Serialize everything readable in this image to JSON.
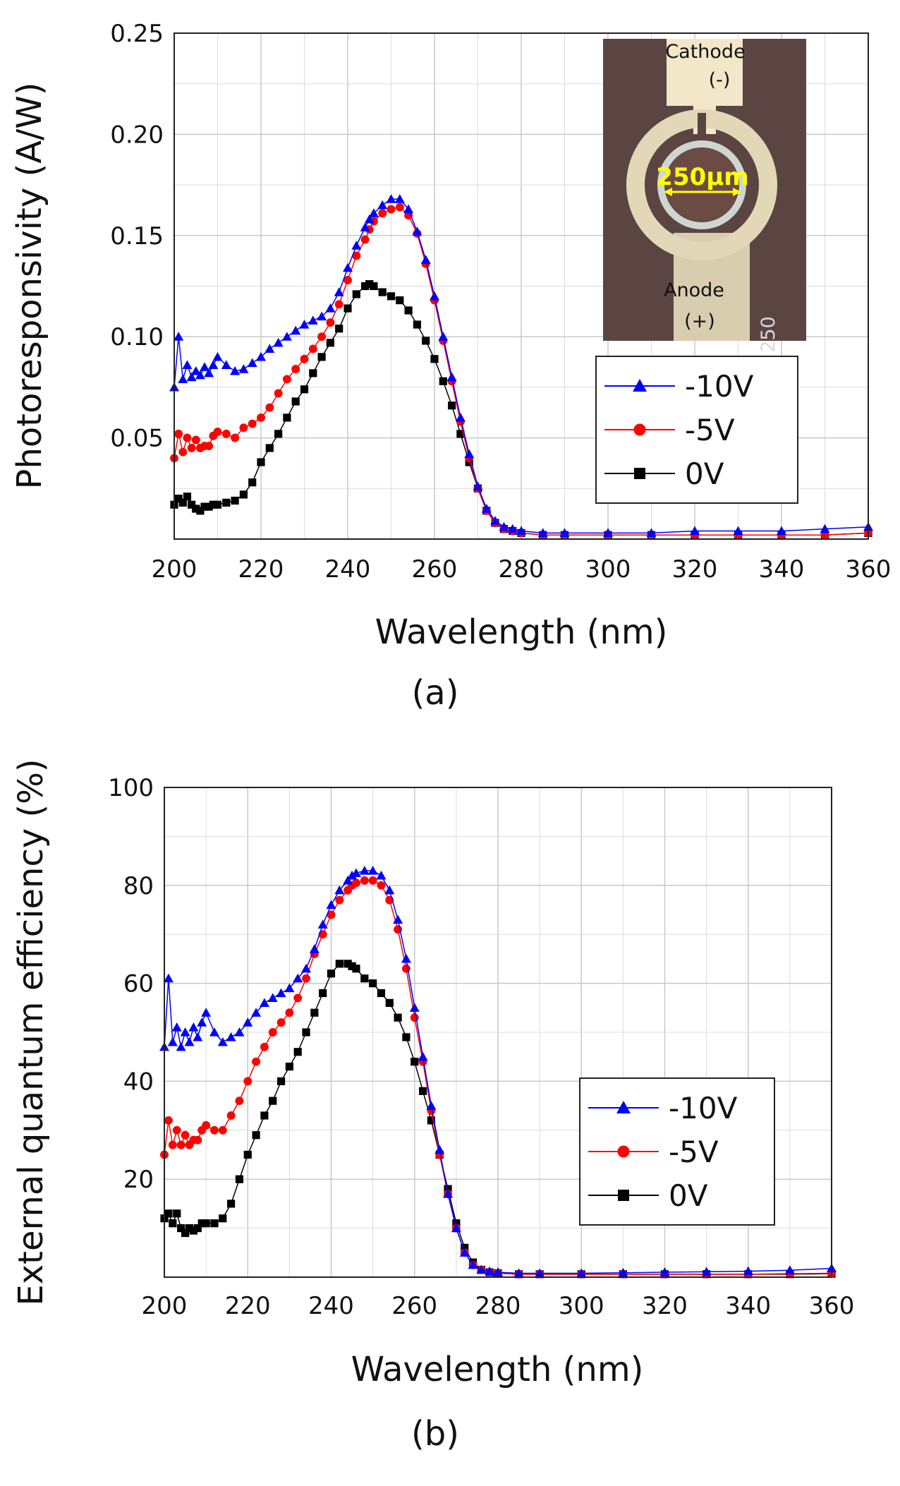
{
  "chart_data": [
    {
      "type": "scatter",
      "panel_label": "(a)",
      "xlabel": "Wavelength (nm)",
      "ylabel": "Photoresponsivity (A/W)",
      "xlim": [
        200,
        360
      ],
      "ylim": [
        0,
        0.25
      ],
      "x_ticks": [
        "200",
        "220",
        "240",
        "260",
        "280",
        "300",
        "320",
        "340",
        "360"
      ],
      "y_ticks": [
        "0.05",
        "0.10",
        "0.15",
        "0.20",
        "0.25"
      ],
      "grid": true,
      "legend_position": "right-middle",
      "inset": {
        "label_top": "Cathode",
        "label_top_sign": "(-)",
        "label_bottom": "Anode",
        "label_bottom_sign": "(+)",
        "scale_label": "250μm",
        "device_number": "250"
      },
      "x": [
        200,
        201,
        202,
        203,
        204,
        205,
        206,
        207,
        208,
        209,
        210,
        212,
        214,
        216,
        218,
        220,
        222,
        224,
        226,
        228,
        230,
        232,
        234,
        236,
        238,
        240,
        242,
        244,
        245,
        246,
        248,
        250,
        252,
        254,
        256,
        258,
        260,
        262,
        264,
        266,
        268,
        270,
        272,
        274,
        276,
        278,
        280,
        285,
        290,
        300,
        310,
        320,
        330,
        340,
        350,
        360
      ],
      "series": [
        {
          "name": "-10V",
          "color": "#0000ff",
          "marker": "triangle",
          "values": [
            0.075,
            0.1,
            0.079,
            0.086,
            0.08,
            0.083,
            0.081,
            0.085,
            0.082,
            0.086,
            0.09,
            0.086,
            0.083,
            0.084,
            0.087,
            0.09,
            0.094,
            0.097,
            0.1,
            0.103,
            0.106,
            0.108,
            0.11,
            0.114,
            0.122,
            0.134,
            0.145,
            0.154,
            0.158,
            0.161,
            0.165,
            0.168,
            0.168,
            0.163,
            0.152,
            0.138,
            0.12,
            0.1,
            0.08,
            0.06,
            0.042,
            0.026,
            0.015,
            0.009,
            0.006,
            0.005,
            0.004,
            0.003,
            0.003,
            0.003,
            0.003,
            0.004,
            0.004,
            0.004,
            0.005,
            0.006
          ]
        },
        {
          "name": "-5V",
          "color": "#ff0000",
          "marker": "circle",
          "values": [
            0.04,
            0.052,
            0.043,
            0.05,
            0.045,
            0.049,
            0.045,
            0.046,
            0.046,
            0.051,
            0.053,
            0.052,
            0.05,
            0.055,
            0.057,
            0.06,
            0.065,
            0.072,
            0.079,
            0.084,
            0.089,
            0.094,
            0.1,
            0.107,
            0.116,
            0.128,
            0.14,
            0.148,
            0.153,
            0.157,
            0.161,
            0.163,
            0.164,
            0.16,
            0.151,
            0.136,
            0.118,
            0.098,
            0.078,
            0.058,
            0.04,
            0.025,
            0.014,
            0.008,
            0.005,
            0.004,
            0.003,
            0.002,
            0.002,
            0.002,
            0.002,
            0.002,
            0.002,
            0.002,
            0.002,
            0.003
          ]
        },
        {
          "name": "0V",
          "color": "#000000",
          "marker": "square",
          "values": [
            0.017,
            0.02,
            0.018,
            0.021,
            0.017,
            0.015,
            0.014,
            0.016,
            0.016,
            0.017,
            0.017,
            0.018,
            0.019,
            0.022,
            0.028,
            0.038,
            0.045,
            0.052,
            0.06,
            0.068,
            0.074,
            0.082,
            0.09,
            0.097,
            0.104,
            0.114,
            0.121,
            0.125,
            0.126,
            0.125,
            0.122,
            0.12,
            0.118,
            0.113,
            0.106,
            0.098,
            0.089,
            0.078,
            0.066,
            0.052,
            0.038,
            0.025,
            0.014,
            0.008,
            0.005,
            0.004,
            0.003,
            0.002,
            0.002,
            0.002,
            0.002,
            0.002,
            0.002,
            0.002,
            0.002,
            0.003
          ]
        }
      ]
    },
    {
      "type": "scatter",
      "panel_label": "(b)",
      "xlabel": "Wavelength (nm)",
      "ylabel": "External quantum efficiency (%)",
      "xlim": [
        200,
        360
      ],
      "ylim": [
        0,
        100
      ],
      "x_ticks": [
        "200",
        "220",
        "240",
        "260",
        "280",
        "300",
        "320",
        "340",
        "360"
      ],
      "y_ticks": [
        "20",
        "40",
        "60",
        "80",
        "100"
      ],
      "grid": true,
      "legend_position": "right-middle",
      "x": [
        200,
        201,
        202,
        203,
        204,
        205,
        206,
        207,
        208,
        209,
        210,
        212,
        214,
        216,
        218,
        220,
        222,
        224,
        226,
        228,
        230,
        232,
        234,
        236,
        238,
        240,
        242,
        244,
        245,
        246,
        248,
        250,
        252,
        254,
        256,
        258,
        260,
        262,
        264,
        266,
        268,
        270,
        272,
        274,
        276,
        278,
        280,
        285,
        290,
        300,
        310,
        320,
        330,
        340,
        350,
        360
      ],
      "series": [
        {
          "name": "-10V",
          "color": "#0000ff",
          "marker": "triangle",
          "values": [
            47,
            61,
            48,
            51,
            47,
            50,
            48,
            51,
            49,
            52,
            54,
            50,
            48,
            49,
            50,
            52,
            54,
            56,
            57,
            58,
            59,
            61,
            63,
            67,
            72,
            76,
            79,
            81,
            82,
            82.5,
            83,
            83,
            82,
            79,
            73,
            65,
            55,
            45,
            35,
            26,
            17,
            10,
            5,
            2.5,
            1.5,
            1.2,
            1,
            0.8,
            0.8,
            0.8,
            0.9,
            1,
            1.1,
            1.2,
            1.4,
            1.8
          ]
        },
        {
          "name": "-5V",
          "color": "#ff0000",
          "marker": "circle",
          "values": [
            25,
            32,
            27,
            30,
            27,
            29,
            27,
            28,
            28,
            30,
            31,
            30,
            30,
            33,
            36,
            40,
            44,
            47,
            50,
            52,
            54,
            57,
            61,
            66,
            70,
            74,
            77,
            79,
            80,
            80.5,
            81,
            81,
            80,
            77,
            71,
            63,
            53,
            44,
            34,
            25,
            17,
            10,
            5,
            2.5,
            1.5,
            1,
            0.8,
            0.6,
            0.6,
            0.6,
            0.6,
            0.6,
            0.6,
            0.6,
            0.7,
            0.8
          ]
        },
        {
          "name": "0V",
          "color": "#000000",
          "marker": "square",
          "values": [
            12,
            13,
            11,
            13,
            10,
            9,
            10,
            9.5,
            10,
            11,
            11,
            11,
            12,
            15,
            20,
            25,
            29,
            33,
            36,
            40,
            43,
            46,
            50,
            54,
            58,
            62,
            64,
            64,
            63.5,
            63,
            61,
            60,
            58,
            56,
            53,
            49,
            44,
            38,
            32,
            25,
            18,
            11,
            6,
            3,
            1.5,
            1,
            0.8,
            0.6,
            0.6,
            0.6,
            0.6,
            0.6,
            0.6,
            0.6,
            0.6,
            0.7
          ]
        }
      ]
    }
  ]
}
